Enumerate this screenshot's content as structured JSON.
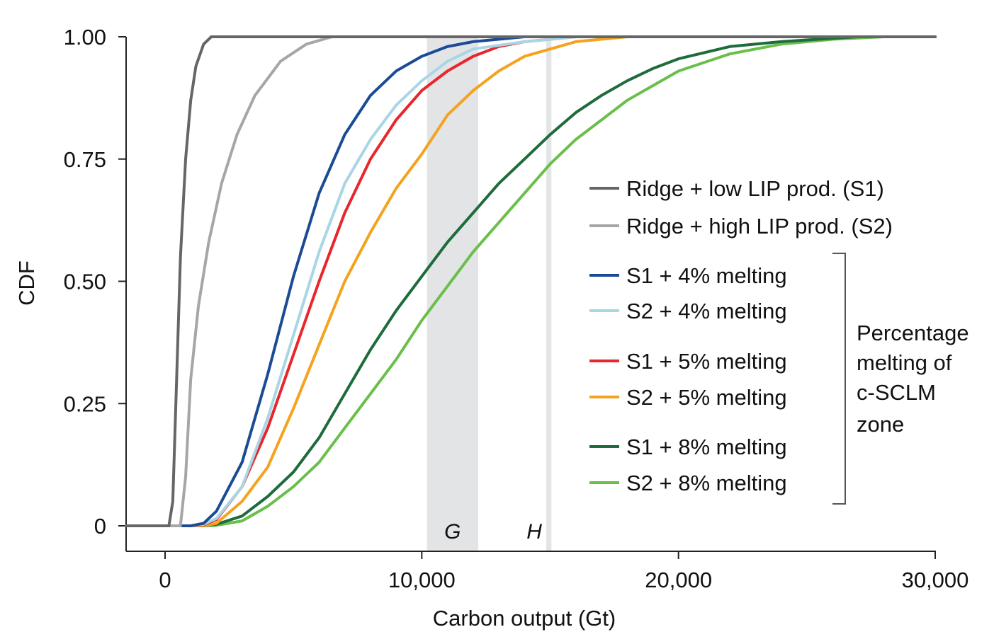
{
  "chart_data": {
    "type": "line",
    "xlabel": "Carbon output (Gt)",
    "ylabel": "CDF",
    "xlim": [
      -1500,
      30000
    ],
    "ylim": [
      -0.05,
      1.0
    ],
    "xticks": [
      0,
      10000,
      20000,
      30000
    ],
    "xtick_labels": [
      "0",
      "10,000",
      "20,000",
      "30,000"
    ],
    "yticks": [
      0,
      0.25,
      0.5,
      0.75,
      1.0
    ],
    "ytick_labels": [
      "0",
      "0.25",
      "0.50",
      "0.75",
      "1.00"
    ],
    "grid": false,
    "shaded_regions": [
      {
        "label": "G",
        "x_start": 10200,
        "x_end": 12200,
        "color": "#e3e4e6"
      },
      {
        "label": "H",
        "x_start": 14850,
        "x_end": 15050,
        "color": "#e3e4e6"
      }
    ],
    "legend_position": "right",
    "legend_group_label": "Percentage melting of c-SCLM zone",
    "legend_group_lines": [
      "Percentage",
      "melting of",
      "c-SCLM",
      "zone"
    ],
    "series": [
      {
        "name": "Ridge + low LIP prod. (S1)",
        "color": "#666666",
        "x": [
          0,
          150,
          300,
          450,
          600,
          800,
          1000,
          1200,
          1500,
          1800,
          5000,
          30000
        ],
        "y": [
          0,
          0,
          0.05,
          0.3,
          0.55,
          0.75,
          0.87,
          0.94,
          0.985,
          1.0,
          1.0,
          1.0
        ]
      },
      {
        "name": "Ridge + high LIP prod. (S2)",
        "color": "#a6a6a6",
        "x": [
          0,
          600,
          800,
          1000,
          1300,
          1700,
          2200,
          2800,
          3500,
          4500,
          5500,
          6500,
          30000
        ],
        "y": [
          0,
          0,
          0.1,
          0.3,
          0.45,
          0.58,
          0.7,
          0.8,
          0.88,
          0.95,
          0.985,
          1.0,
          1.0
        ]
      },
      {
        "name": "S1 + 4% melting",
        "color": "#1c4b96",
        "x": [
          0,
          1000,
          1500,
          2000,
          3000,
          4000,
          5000,
          6000,
          7000,
          8000,
          9000,
          10000,
          11000,
          12000,
          14000,
          30000
        ],
        "y": [
          0,
          0,
          0.005,
          0.03,
          0.13,
          0.31,
          0.51,
          0.68,
          0.8,
          0.88,
          0.93,
          0.96,
          0.98,
          0.99,
          1.0,
          1.0
        ]
      },
      {
        "name": "S2 + 4% melting",
        "color": "#a9d6e5",
        "x": [
          0,
          1000,
          1500,
          2000,
          3000,
          4000,
          5000,
          6000,
          7000,
          8000,
          9000,
          10000,
          11000,
          12000,
          14000,
          16000,
          30000
        ],
        "y": [
          0,
          0,
          0.003,
          0.015,
          0.08,
          0.22,
          0.39,
          0.56,
          0.7,
          0.79,
          0.86,
          0.91,
          0.95,
          0.975,
          0.99,
          1.0,
          1.0
        ]
      },
      {
        "name": "S1 + 5% melting",
        "color": "#e8262b",
        "x": [
          0,
          1000,
          1500,
          2000,
          3000,
          4000,
          5000,
          6000,
          7000,
          8000,
          9000,
          10000,
          11000,
          12000,
          13000,
          14000,
          16000,
          30000
        ],
        "y": [
          0,
          0,
          0.002,
          0.013,
          0.08,
          0.2,
          0.35,
          0.5,
          0.64,
          0.75,
          0.83,
          0.89,
          0.93,
          0.96,
          0.98,
          0.99,
          1.0,
          1.0
        ]
      },
      {
        "name": "S2 + 5% melting",
        "color": "#f4a31f",
        "x": [
          0,
          1500,
          2000,
          3000,
          4000,
          5000,
          6000,
          7000,
          8000,
          9000,
          10000,
          11000,
          12000,
          13000,
          14000,
          15000,
          16000,
          18000,
          20000,
          30000
        ],
        "y": [
          0,
          0,
          0.005,
          0.05,
          0.12,
          0.24,
          0.37,
          0.5,
          0.6,
          0.69,
          0.76,
          0.84,
          0.89,
          0.93,
          0.96,
          0.975,
          0.99,
          1.0,
          1.0,
          1.0
        ]
      },
      {
        "name": "S1 + 8% melting",
        "color": "#1e6b3b",
        "x": [
          0,
          1500,
          2000,
          3000,
          4000,
          5000,
          6000,
          7000,
          8000,
          9000,
          10000,
          11000,
          12000,
          13000,
          14000,
          15000,
          16000,
          17000,
          18000,
          19000,
          20000,
          22000,
          24000,
          26000,
          27000,
          30000
        ],
        "y": [
          0,
          0,
          0.003,
          0.02,
          0.06,
          0.11,
          0.18,
          0.27,
          0.36,
          0.44,
          0.51,
          0.58,
          0.64,
          0.7,
          0.75,
          0.8,
          0.845,
          0.88,
          0.91,
          0.935,
          0.955,
          0.98,
          0.99,
          0.997,
          1.0,
          1.0
        ]
      },
      {
        "name": "S2 + 8% melting",
        "color": "#6abf4b",
        "x": [
          0,
          1500,
          2000,
          3000,
          4000,
          5000,
          6000,
          7000,
          8000,
          9000,
          10000,
          11000,
          12000,
          13000,
          14000,
          15000,
          16000,
          17000,
          18000,
          19000,
          20000,
          22000,
          24000,
          26000,
          28000,
          30000
        ],
        "y": [
          0,
          0,
          0.001,
          0.01,
          0.04,
          0.08,
          0.13,
          0.2,
          0.27,
          0.34,
          0.42,
          0.49,
          0.56,
          0.62,
          0.68,
          0.74,
          0.79,
          0.83,
          0.87,
          0.9,
          0.93,
          0.965,
          0.985,
          0.995,
          1.0,
          1.0
        ]
      }
    ]
  }
}
